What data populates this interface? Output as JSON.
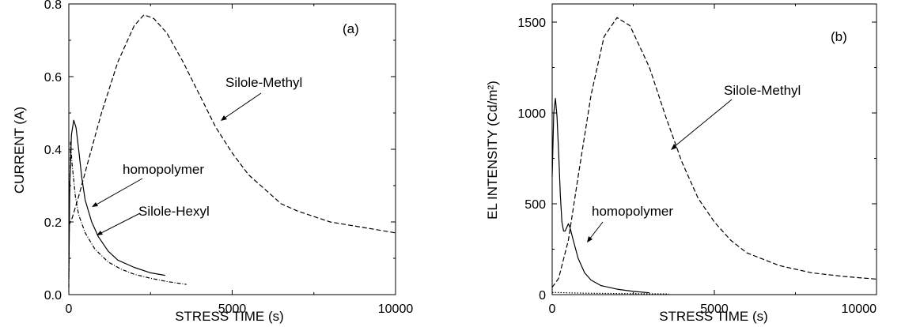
{
  "chart_data": [
    {
      "type": "line",
      "panel_label": "(a)",
      "xlabel": "STRESS TIME (s)",
      "ylabel": "CURRENT (A)",
      "xlim": [
        0,
        10000
      ],
      "ylim": [
        0,
        0.8
      ],
      "xticks": [
        0,
        5000,
        10000
      ],
      "yticks": [
        0.0,
        0.2,
        0.4,
        0.6,
        0.8
      ],
      "xtick_labels": [
        "0",
        "5000",
        "10000"
      ],
      "ytick_labels": [
        "0.0",
        "0.2",
        "0.4",
        "0.6",
        "0.8"
      ],
      "series": [
        {
          "name": "Silole-Methyl",
          "style": "dashed",
          "x": [
            0,
            100,
            300,
            600,
            1000,
            1500,
            2000,
            2300,
            2600,
            3000,
            3500,
            4000,
            4500,
            5000,
            5500,
            6000,
            6500,
            7000,
            8000,
            9000,
            10000
          ],
          "y": [
            0.19,
            0.21,
            0.27,
            0.37,
            0.5,
            0.64,
            0.74,
            0.77,
            0.76,
            0.72,
            0.64,
            0.55,
            0.46,
            0.39,
            0.33,
            0.29,
            0.25,
            0.23,
            0.2,
            0.185,
            0.17
          ]
        },
        {
          "name": "homopolymer",
          "style": "solid",
          "x": [
            0,
            30,
            80,
            150,
            220,
            300,
            400,
            500,
            700,
            900,
            1200,
            1500,
            2000,
            2500,
            2950
          ],
          "y": [
            0.05,
            0.3,
            0.44,
            0.48,
            0.46,
            0.4,
            0.32,
            0.26,
            0.2,
            0.16,
            0.12,
            0.095,
            0.075,
            0.06,
            0.053
          ]
        },
        {
          "name": "Silole-Hexyl",
          "style": "dashdot",
          "x": [
            0,
            20,
            50,
            100,
            200,
            300,
            500,
            800,
            1200,
            1600,
            2000,
            2500,
            3000,
            3600
          ],
          "y": [
            0.02,
            0.25,
            0.42,
            0.36,
            0.27,
            0.22,
            0.17,
            0.125,
            0.09,
            0.07,
            0.056,
            0.045,
            0.036,
            0.028
          ]
        }
      ],
      "annotations": [
        {
          "text": "Silole-Methyl",
          "series": "Silole-Methyl"
        },
        {
          "text": "homopolymer",
          "series": "homopolymer"
        },
        {
          "text": "Silole-Hexyl",
          "series": "Silole-Hexyl"
        }
      ]
    },
    {
      "type": "line",
      "panel_label": "(b)",
      "xlabel": "STRESS TIME (s)",
      "ylabel": "EL INTENSITY (Cd/m²)",
      "xlim": [
        0,
        10000
      ],
      "ylim": [
        0,
        1600
      ],
      "xticks": [
        0,
        5000,
        10000
      ],
      "yticks": [
        0,
        500,
        1000,
        1500
      ],
      "xtick_labels": [
        "0",
        "5000",
        "10000"
      ],
      "ytick_labels": [
        "0",
        "500",
        "1000",
        "1500"
      ],
      "series": [
        {
          "name": "Silole-Methyl",
          "style": "dashed",
          "x": [
            0,
            200,
            500,
            800,
            1200,
            1600,
            2000,
            2400,
            3000,
            3500,
            4000,
            4500,
            5000,
            5500,
            6000,
            7000,
            8000,
            9000,
            10000
          ],
          "y": [
            40,
            90,
            300,
            650,
            1100,
            1420,
            1525,
            1480,
            1250,
            980,
            730,
            530,
            400,
            300,
            230,
            160,
            120,
            100,
            85
          ]
        },
        {
          "name": "homopolymer",
          "style": "solid",
          "x": [
            0,
            50,
            100,
            150,
            200,
            250,
            300,
            350,
            400,
            500,
            550,
            650,
            800,
            1000,
            1200,
            1500,
            2000,
            2500,
            3000
          ],
          "y": [
            650,
            1000,
            1080,
            980,
            780,
            550,
            400,
            350,
            350,
            390,
            370,
            300,
            200,
            120,
            80,
            50,
            30,
            18,
            10
          ]
        },
        {
          "name": "Silole-Hexyl",
          "style": "dotted",
          "x": [
            0,
            500,
            1000,
            2000,
            3000,
            3600
          ],
          "y": [
            12,
            10,
            8,
            6,
            5,
            4
          ]
        }
      ],
      "annotations": [
        {
          "text": "Silole-Methyl",
          "series": "Silole-Methyl"
        },
        {
          "text": "homopolymer",
          "series": "homopolymer"
        }
      ]
    }
  ]
}
